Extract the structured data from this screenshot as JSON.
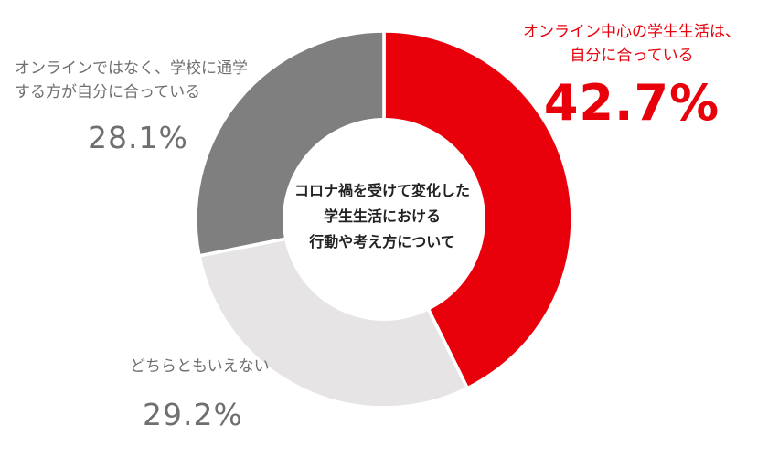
{
  "chart_data": {
    "type": "pie",
    "title": "",
    "center_label": [
      "コロナ禍を受けて変化した",
      "学生生活における",
      "行動や考え方について"
    ],
    "slices": [
      {
        "label_lines": [
          "オンライン中心の学生生活は、",
          "自分に合っている"
        ],
        "value": 42.7,
        "display": "42.7%",
        "color": "#e8000b"
      },
      {
        "label_lines": [
          "どちらともいえない"
        ],
        "value": 29.2,
        "display": "29.2%",
        "color": "#e6e4e5"
      },
      {
        "label_lines": [
          "オンラインではなく、学校に通学",
          "する方が自分に合っている"
        ],
        "value": 28.1,
        "display": "28.1%",
        "color": "#7f7f7f"
      }
    ],
    "donut": true,
    "legend": "none",
    "start_angle_deg": 0,
    "direction": "clockwise"
  }
}
